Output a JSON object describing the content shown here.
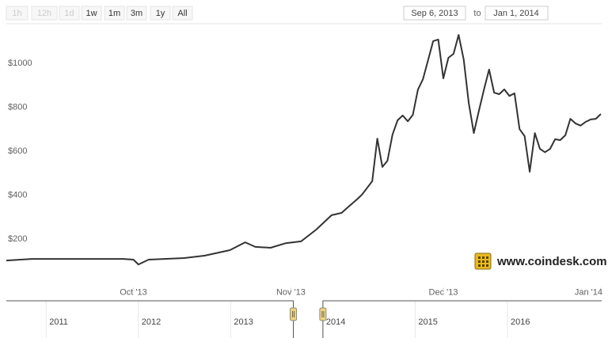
{
  "range_selector": {
    "buttons": [
      {
        "label": "1h",
        "enabled": false
      },
      {
        "label": "12h",
        "enabled": false
      },
      {
        "label": "1d",
        "enabled": false
      },
      {
        "label": "1w",
        "enabled": true
      },
      {
        "label": "1m",
        "enabled": true
      },
      {
        "label": "3m",
        "enabled": true
      },
      {
        "label": "1y",
        "enabled": true
      },
      {
        "label": "All",
        "enabled": true
      }
    ]
  },
  "date_range": {
    "from": "Sep 6, 2013",
    "separator": "to",
    "to": "Jan 1, 2014"
  },
  "chart_data": {
    "type": "line",
    "color": "#333333",
    "x": [
      "2013-09-06",
      "2013-09-11",
      "2013-09-20",
      "2013-09-29",
      "2013-10-01",
      "2013-10-02",
      "2013-10-04",
      "2013-10-11",
      "2013-10-15",
      "2013-10-20",
      "2013-10-23",
      "2013-10-25",
      "2013-10-28",
      "2013-10-31",
      "2013-11-03",
      "2013-11-06",
      "2013-11-09",
      "2013-11-11",
      "2013-11-12",
      "2013-11-14",
      "2013-11-15",
      "2013-11-17",
      "2013-11-18",
      "2013-11-19",
      "2013-11-20",
      "2013-11-21",
      "2013-11-22",
      "2013-11-23",
      "2013-11-24",
      "2013-11-25",
      "2013-11-26",
      "2013-11-27",
      "2013-11-29",
      "2013-11-30",
      "2013-12-01",
      "2013-12-02",
      "2013-12-03",
      "2013-12-04",
      "2013-12-05",
      "2013-12-06",
      "2013-12-07",
      "2013-12-08",
      "2013-12-09",
      "2013-12-10",
      "2013-12-11",
      "2013-12-12",
      "2013-12-13",
      "2013-12-14",
      "2013-12-15",
      "2013-12-16",
      "2013-12-17",
      "2013-12-18",
      "2013-12-19",
      "2013-12-20",
      "2013-12-21",
      "2013-12-22",
      "2013-12-23",
      "2013-12-24",
      "2013-12-25",
      "2013-12-26",
      "2013-12-27",
      "2013-12-28",
      "2013-12-29",
      "2013-12-30",
      "2013-12-31",
      "2014-01-01"
    ],
    "values": [
      124,
      131,
      131,
      131,
      128,
      106,
      128,
      135,
      146,
      171,
      207,
      186,
      182,
      203,
      211,
      265,
      330,
      341,
      362,
      402,
      424,
      485,
      679,
      550,
      578,
      697,
      762,
      784,
      758,
      787,
      902,
      950,
      1123,
      1130,
      953,
      1047,
      1065,
      1151,
      1040,
      841,
      704,
      805,
      903,
      993,
      888,
      881,
      903,
      873,
      885,
      722,
      690,
      528,
      704,
      632,
      617,
      632,
      676,
      672,
      694,
      769,
      748,
      738,
      755,
      766,
      769,
      791
    ],
    "xlim": [
      "2013-09-06",
      "2014-01-01"
    ],
    "xticks": [
      {
        "value": "2013-10-01",
        "label": "Oct '13"
      },
      {
        "value": "2013-11-01",
        "label": "Nov '13"
      },
      {
        "value": "2013-12-01",
        "label": "Dec '13"
      },
      {
        "value": "2014-01-01",
        "label": "Jan '14"
      }
    ],
    "ylim": [
      0,
      1200
    ],
    "yticks": [
      {
        "value": 200,
        "label": "$200"
      },
      {
        "value": 400,
        "label": "$400"
      },
      {
        "value": 600,
        "label": "$600"
      },
      {
        "value": 800,
        "label": "$800"
      },
      {
        "value": 1000,
        "label": "$1000"
      }
    ],
    "grid": false
  },
  "navigator": {
    "xlim": [
      2010.5,
      2017.09
    ],
    "xticks": [
      2011,
      2012,
      2013,
      2014,
      2015,
      2016
    ]
  },
  "watermark": "www.coindesk.com"
}
